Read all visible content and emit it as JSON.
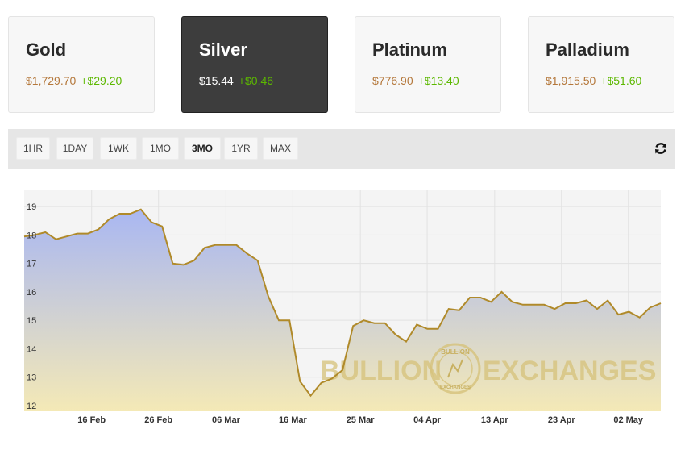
{
  "metals": [
    {
      "name": "Gold",
      "price": "$1,729.70",
      "change": "+$29.20",
      "active": false
    },
    {
      "name": "Silver",
      "price": "$15.44",
      "change": "+$0.46",
      "active": true
    },
    {
      "name": "Platinum",
      "price": "$776.90",
      "change": "+$13.40",
      "active": false
    },
    {
      "name": "Palladium",
      "price": "$1,915.50",
      "change": "+$51.60",
      "active": false
    }
  ],
  "timeframes": [
    "1HR",
    "1DAY",
    "1WK",
    "1MO",
    "3MO",
    "1YR",
    "MAX"
  ],
  "active_timeframe": "3MO",
  "refresh_icon": "refresh-icon",
  "watermark": {
    "left": "BULLION",
    "right": "EXCHANGES",
    "seal_top": "BULLION",
    "seal_bottom": "EXCHANGES"
  },
  "colors": {
    "line": "#b08a2a",
    "fill_top": "#a9b7f2",
    "fill_bottom": "#f4e9b6",
    "price": "#b4773a",
    "change": "#5cb800"
  },
  "chart_data": {
    "type": "area",
    "series": [
      {
        "values": [
          17.95,
          18.0,
          18.1,
          17.85,
          17.95,
          18.05,
          18.05,
          18.2,
          18.55,
          18.75,
          18.75,
          18.9,
          18.45,
          18.3,
          17.0,
          16.95,
          17.1,
          17.55,
          17.65,
          17.65,
          17.65,
          17.35,
          17.1,
          15.85,
          15.0,
          15.0,
          12.85,
          12.35,
          12.8,
          12.95,
          13.25,
          14.8,
          15.0,
          14.9,
          14.9,
          14.5,
          14.25,
          14.85,
          14.7,
          14.7,
          15.4,
          15.35,
          15.8,
          15.8,
          15.65,
          16.0,
          15.65,
          15.55,
          15.55,
          15.55,
          15.4,
          15.6,
          15.6,
          15.7,
          15.4,
          15.7,
          15.2,
          15.3,
          15.1,
          15.45,
          15.6
        ]
      }
    ],
    "x_ticks": [
      "16 Feb",
      "26 Feb",
      "06 Mar",
      "16 Mar",
      "25 Mar",
      "04 Apr",
      "13 Apr",
      "23 Apr",
      "02 May"
    ],
    "y_ticks": [
      12,
      13,
      14,
      15,
      16,
      17,
      18,
      19
    ],
    "ylim": [
      11.8,
      19.6
    ],
    "grid": true
  }
}
